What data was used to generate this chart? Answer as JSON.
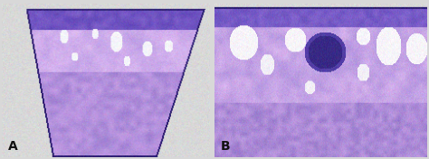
{
  "background_color": "#d8d8d8",
  "label_A": "A",
  "label_B": "B",
  "label_fontsize": 10,
  "label_color": "#111111",
  "figwidth": 4.74,
  "figheight": 1.76,
  "dpi": 100,
  "panel_A_bg": "#c8c8c8",
  "panel_B_bg": "#c8c8c8",
  "colors": {
    "bg_gray": [
      0.847,
      0.847,
      0.847
    ],
    "epidermis_dark": [
      0.35,
      0.3,
      0.65
    ],
    "dermis_mid": [
      0.72,
      0.65,
      0.85
    ],
    "dermis_light": [
      0.82,
      0.76,
      0.92
    ],
    "white_space": [
      0.97,
      0.97,
      0.99
    ],
    "tissue_edge": [
      0.3,
      0.25,
      0.6
    ],
    "follicle_dark": [
      0.2,
      0.15,
      0.5
    ],
    "inflammation": [
      0.6,
      0.52,
      0.82
    ]
  }
}
